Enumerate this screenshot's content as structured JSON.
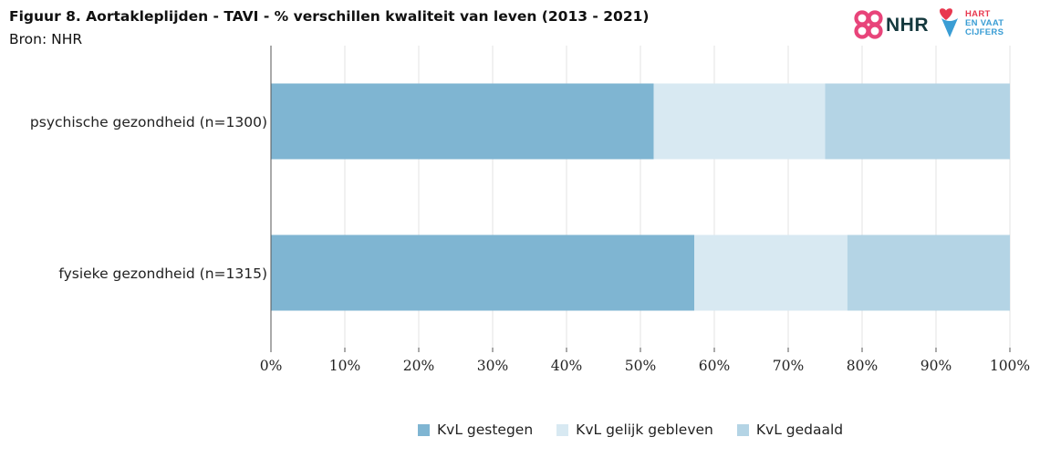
{
  "title": "Figuur 8. Aortakleplijden - TAVI - % verschillen kwaliteit van leven (2013 - 2021)",
  "source": "Bron: NHR",
  "logos": {
    "nhr": {
      "text": "NHR",
      "icon": "nhr-knot-icon"
    },
    "hvc": {
      "line1": "HART",
      "line2": "EN VAAT",
      "line3": "CIJFERS",
      "icon": "heart-drop-icon"
    }
  },
  "colors": {
    "gestegen": "#7fb5d2",
    "gelijk": "#d8e9f2",
    "gedaald": "#b4d4e5",
    "axis": "#555555",
    "grid": "#e3e3e3",
    "nhr_pink": "#e8447a",
    "hvc_red": "#e8384f",
    "hvc_blue": "#3a9dd4"
  },
  "chart_data": {
    "type": "bar",
    "orientation": "horizontal",
    "stacked": true,
    "categories": [
      "psychische gezondheid (n=1300)",
      "fysieke gezondheid (n=1315)"
    ],
    "series": [
      {
        "name": "KvL gestegen",
        "color_key": "gestegen",
        "values": [
          51.8,
          57.3
        ]
      },
      {
        "name": "KvL gelijk gebleven",
        "color_key": "gelijk",
        "values": [
          23.2,
          20.7
        ]
      },
      {
        "name": "KvL gedaald",
        "color_key": "gedaald",
        "values": [
          25.0,
          22.0
        ]
      }
    ],
    "xlim": [
      0,
      100
    ],
    "xticks": [
      0,
      10,
      20,
      30,
      40,
      50,
      60,
      70,
      80,
      90,
      100
    ],
    "tick_suffix": "%",
    "grid": "vertical",
    "legend": "bottom"
  }
}
